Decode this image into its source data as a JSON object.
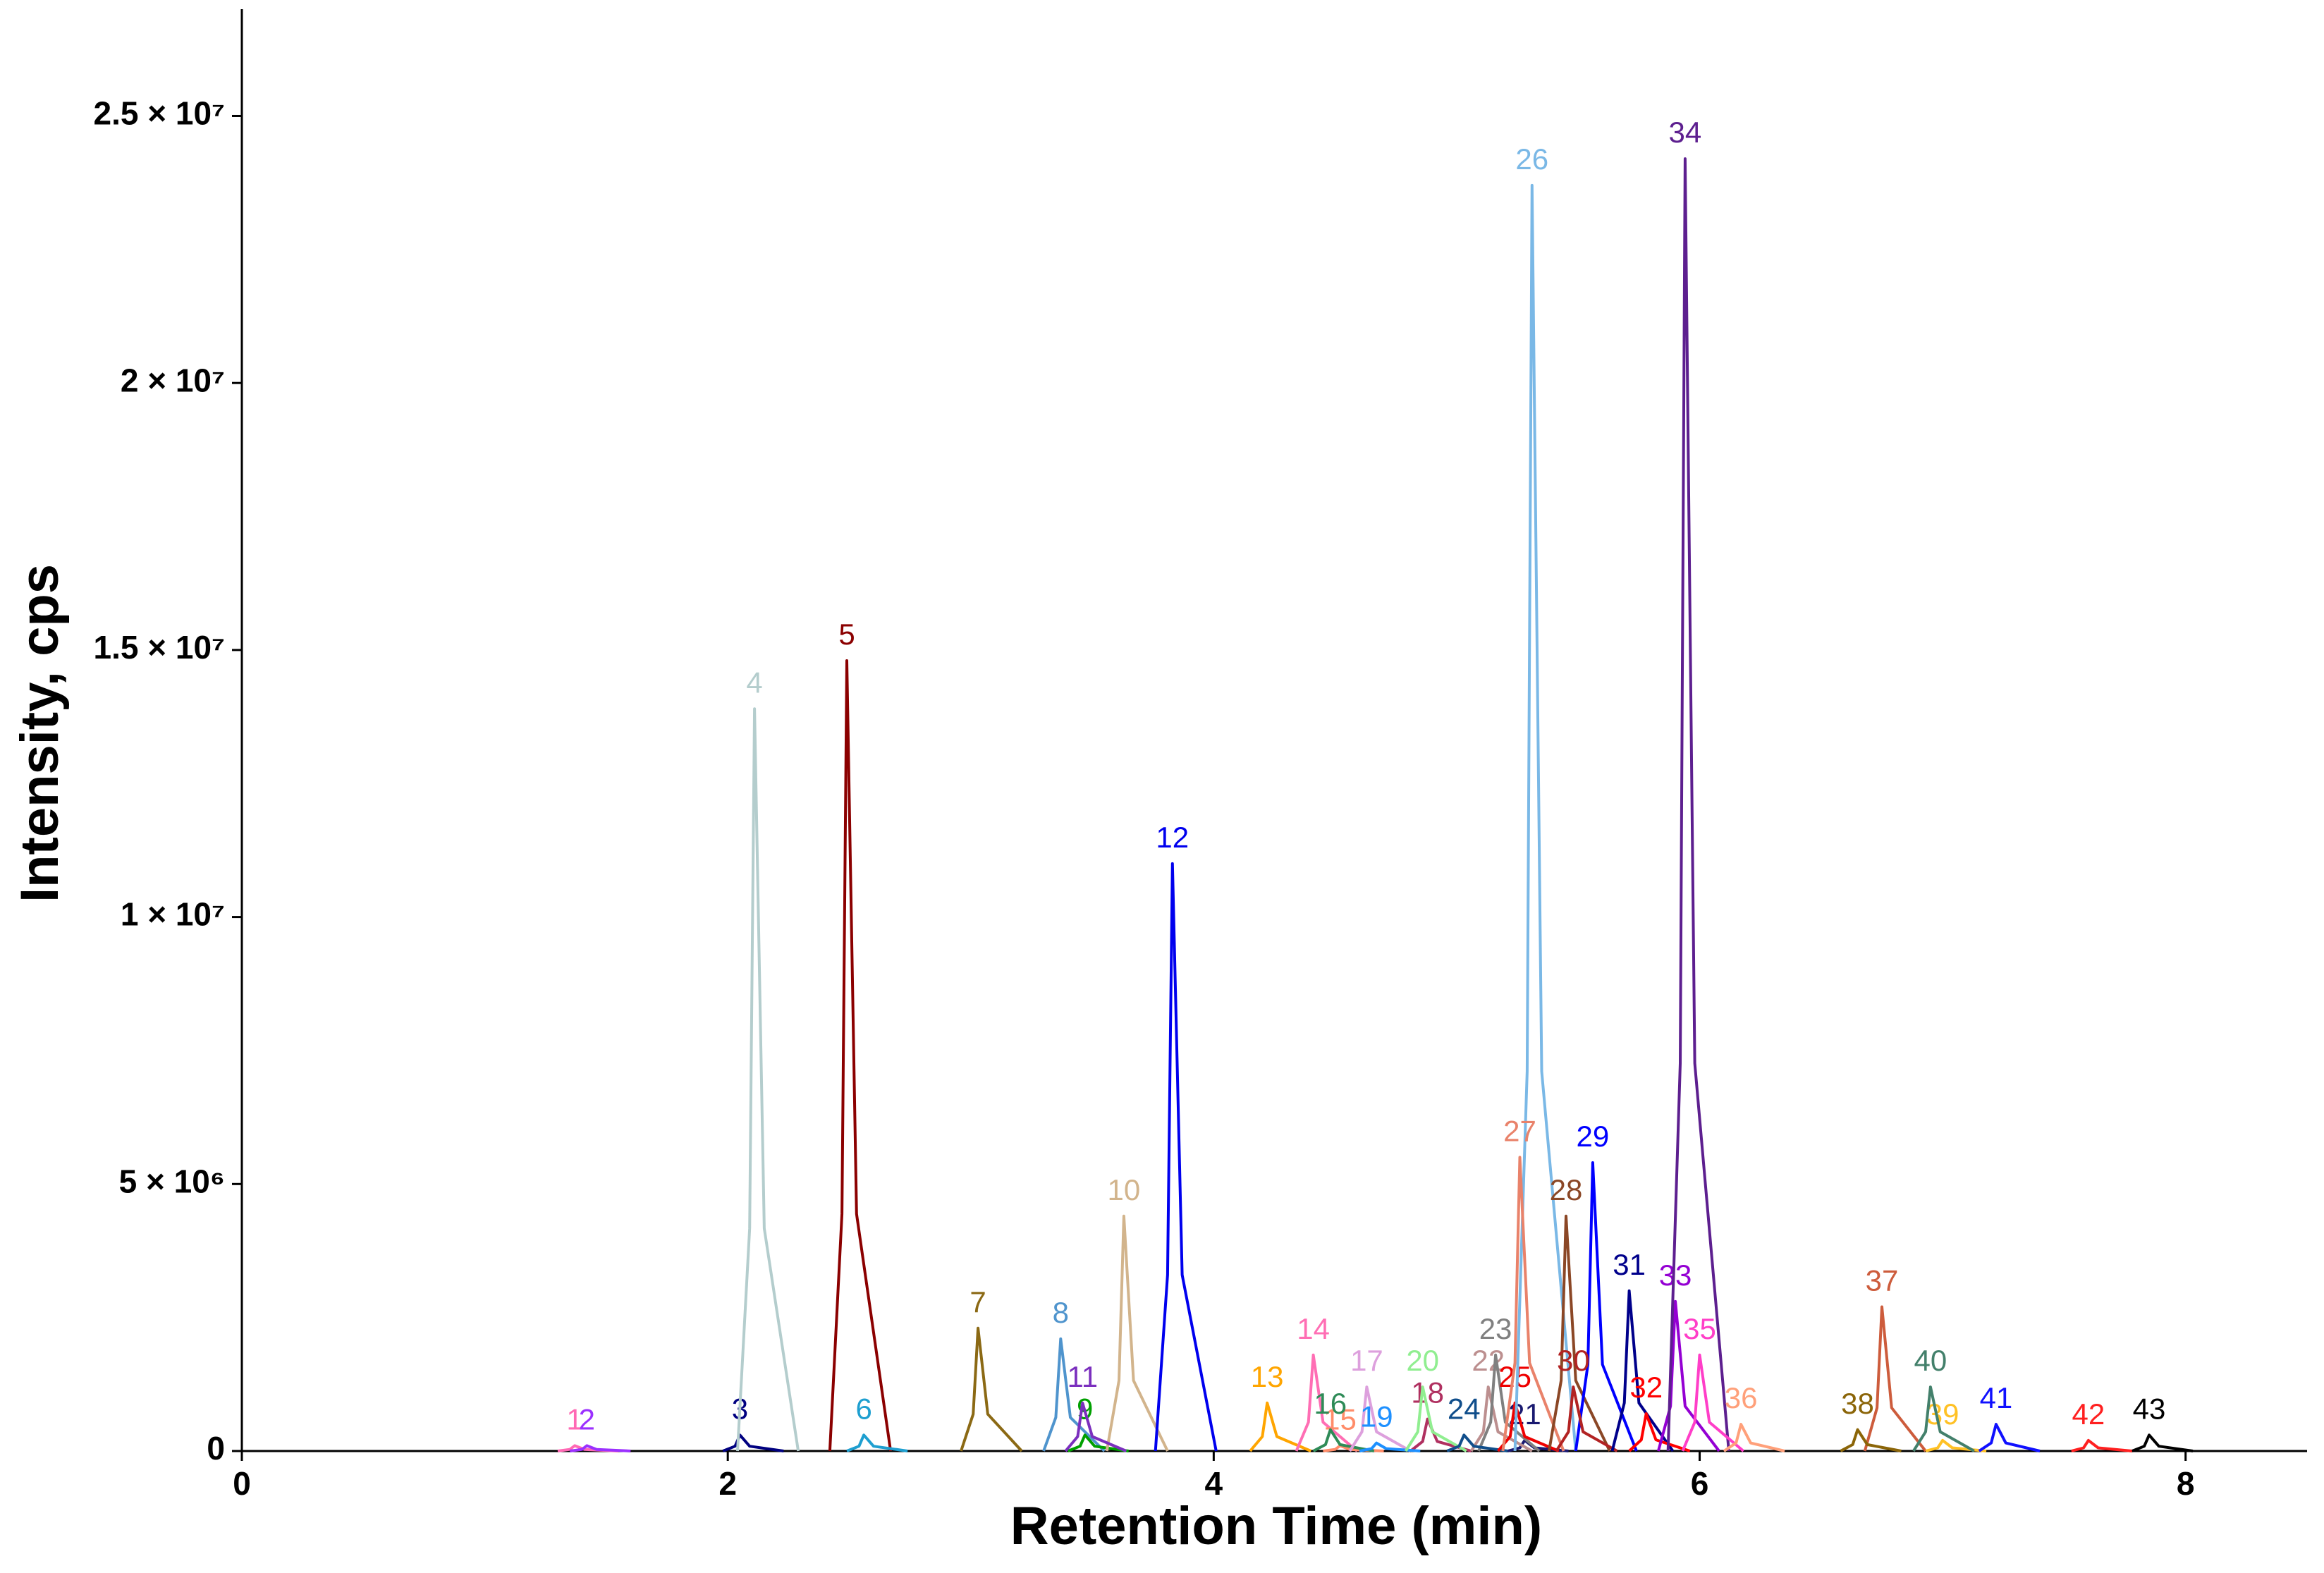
{
  "chart_data": {
    "type": "line",
    "x_label": "Retention Time (min)",
    "y_label": "Intensity, cps",
    "xlim": [
      0,
      8.5
    ],
    "ylim": [
      0,
      27000000
    ],
    "xticks": [
      0,
      2,
      4,
      6,
      8
    ],
    "yticks": [
      0,
      {
        "value": 5000000,
        "label": "5 × 10⁶"
      },
      {
        "value": 10000000,
        "label": "1 × 10⁷"
      },
      {
        "value": 15000000,
        "label": "1.5 × 10⁷"
      },
      {
        "value": 20000000,
        "label": "2 × 10⁷"
      },
      {
        "value": 25000000,
        "label": "2.5 × 10⁷"
      }
    ],
    "series": [
      {
        "name": "1",
        "color": "#ff69b4",
        "x": [
          1.3,
          1.35,
          1.37,
          1.41,
          1.55
        ],
        "values": [
          0,
          30000,
          100000,
          30000,
          0
        ]
      },
      {
        "name": "2",
        "color": "#9b30ff",
        "x": [
          1.35,
          1.4,
          1.42,
          1.46,
          1.6
        ],
        "values": [
          0,
          30000,
          100000,
          30000,
          0
        ]
      },
      {
        "name": "3",
        "color": "#000080",
        "x": [
          1.98,
          2.03,
          2.05,
          2.09,
          2.23
        ],
        "values": [
          0,
          90000,
          300000,
          90000,
          0
        ]
      },
      {
        "name": "4",
        "color": "#b4cdcd",
        "x": [
          2.04,
          2.09,
          2.11,
          2.15,
          2.29
        ],
        "values": [
          0,
          4170000,
          13900000,
          4170000,
          0
        ]
      },
      {
        "name": "5",
        "color": "#8b0000",
        "x": [
          2.42,
          2.47,
          2.49,
          2.53,
          2.67
        ],
        "values": [
          0,
          4440000,
          14800000,
          4440000,
          0
        ]
      },
      {
        "name": "6",
        "color": "#1e9fd0",
        "x": [
          2.49,
          2.54,
          2.56,
          2.6,
          2.74
        ],
        "values": [
          0,
          90000,
          300000,
          90000,
          0
        ]
      },
      {
        "name": "7",
        "color": "#8b6914",
        "x": [
          2.96,
          3.01,
          3.03,
          3.07,
          3.21
        ],
        "values": [
          0,
          690000,
          2300000,
          690000,
          0
        ]
      },
      {
        "name": "8",
        "color": "#4f94cd",
        "x": [
          3.3,
          3.35,
          3.37,
          3.41,
          3.55
        ],
        "values": [
          0,
          630000,
          2100000,
          630000,
          0
        ]
      },
      {
        "name": "9",
        "color": "#00a000",
        "x": [
          3.4,
          3.45,
          3.47,
          3.51,
          3.65
        ],
        "values": [
          0,
          90000,
          300000,
          90000,
          0
        ]
      },
      {
        "name": "10",
        "color": "#d2b48c",
        "x": [
          3.56,
          3.61,
          3.63,
          3.67,
          3.81
        ],
        "values": [
          0,
          1320000,
          4400000,
          1320000,
          0
        ]
      },
      {
        "name": "11",
        "color": "#7b2fbe",
        "x": [
          3.39,
          3.44,
          3.46,
          3.5,
          3.64
        ],
        "values": [
          0,
          270000,
          900000,
          270000,
          0
        ]
      },
      {
        "name": "12",
        "color": "#0000ee",
        "x": [
          3.76,
          3.81,
          3.83,
          3.87,
          4.01
        ],
        "values": [
          0,
          3300000,
          11000000,
          3300000,
          0
        ]
      },
      {
        "name": "13",
        "color": "#ffa500",
        "x": [
          4.15,
          4.2,
          4.22,
          4.26,
          4.4
        ],
        "values": [
          0,
          270000,
          900000,
          270000,
          0
        ]
      },
      {
        "name": "14",
        "color": "#ff6eb4",
        "x": [
          4.34,
          4.39,
          4.41,
          4.45,
          4.59
        ],
        "values": [
          0,
          540000,
          1800000,
          540000,
          0
        ]
      },
      {
        "name": "15",
        "color": "#ff8c69",
        "x": [
          4.45,
          4.5,
          4.52,
          4.56,
          4.7
        ],
        "values": [
          0,
          30000,
          100000,
          30000,
          0
        ]
      },
      {
        "name": "16",
        "color": "#2e8b57",
        "x": [
          4.41,
          4.46,
          4.48,
          4.52,
          4.66
        ],
        "values": [
          0,
          120000,
          400000,
          120000,
          0
        ]
      },
      {
        "name": "17",
        "color": "#dda0dd",
        "x": [
          4.56,
          4.61,
          4.63,
          4.67,
          4.81
        ],
        "values": [
          0,
          360000,
          1200000,
          360000,
          0
        ]
      },
      {
        "name": "18",
        "color": "#b03060",
        "x": [
          4.81,
          4.86,
          4.88,
          4.92,
          5.06
        ],
        "values": [
          0,
          180000,
          600000,
          180000,
          0
        ]
      },
      {
        "name": "19",
        "color": "#1e90ff",
        "x": [
          4.6,
          4.65,
          4.67,
          4.71,
          4.85
        ],
        "values": [
          0,
          45000,
          150000,
          45000,
          0
        ]
      },
      {
        "name": "20",
        "color": "#90ee90",
        "x": [
          4.79,
          4.84,
          4.86,
          4.9,
          5.04
        ],
        "values": [
          0,
          360000,
          1200000,
          360000,
          0
        ]
      },
      {
        "name": "21",
        "color": "#191970",
        "x": [
          5.21,
          5.26,
          5.28,
          5.32,
          5.46
        ],
        "values": [
          0,
          60000,
          200000,
          60000,
          0
        ]
      },
      {
        "name": "22",
        "color": "#bc8f8f",
        "x": [
          5.06,
          5.11,
          5.13,
          5.17,
          5.31
        ],
        "values": [
          0,
          360000,
          1200000,
          360000,
          0
        ]
      },
      {
        "name": "23",
        "color": "#808080",
        "x": [
          5.09,
          5.14,
          5.16,
          5.2,
          5.34
        ],
        "values": [
          0,
          540000,
          1800000,
          540000,
          0
        ]
      },
      {
        "name": "24",
        "color": "#104e8b",
        "x": [
          4.96,
          5.01,
          5.03,
          5.07,
          5.21
        ],
        "values": [
          0,
          90000,
          300000,
          90000,
          0
        ]
      },
      {
        "name": "25",
        "color": "#ee0000",
        "x": [
          5.17,
          5.22,
          5.24,
          5.28,
          5.42
        ],
        "values": [
          0,
          270000,
          900000,
          270000,
          0
        ]
      },
      {
        "name": "26",
        "color": "#7ab8e6",
        "x": [
          5.24,
          5.29,
          5.31,
          5.35,
          5.49
        ],
        "values": [
          0,
          7110000,
          23700000,
          7110000,
          0
        ]
      },
      {
        "name": "27",
        "color": "#e9826a",
        "x": [
          5.19,
          5.24,
          5.26,
          5.3,
          5.44
        ],
        "values": [
          0,
          1650000,
          5500000,
          1650000,
          0
        ]
      },
      {
        "name": "28",
        "color": "#8b4726",
        "x": [
          5.38,
          5.43,
          5.45,
          5.49,
          5.63
        ],
        "values": [
          0,
          1320000,
          4400000,
          1320000,
          0
        ]
      },
      {
        "name": "29",
        "color": "#0000ff",
        "x": [
          5.49,
          5.54,
          5.56,
          5.6,
          5.74
        ],
        "values": [
          0,
          1620000,
          5400000,
          1620000,
          0
        ]
      },
      {
        "name": "30",
        "color": "#b22222",
        "x": [
          5.41,
          5.46,
          5.48,
          5.52,
          5.66
        ],
        "values": [
          0,
          360000,
          1200000,
          360000,
          0
        ]
      },
      {
        "name": "31",
        "color": "#00008b",
        "x": [
          5.64,
          5.69,
          5.71,
          5.75,
          5.89
        ],
        "values": [
          0,
          900000,
          3000000,
          900000,
          0
        ]
      },
      {
        "name": "32",
        "color": "#ff0000",
        "x": [
          5.71,
          5.76,
          5.78,
          5.82,
          5.96
        ],
        "values": [
          0,
          210000,
          700000,
          210000,
          0
        ]
      },
      {
        "name": "33",
        "color": "#9400d3",
        "x": [
          5.83,
          5.88,
          5.9,
          5.94,
          6.08
        ],
        "values": [
          0,
          840000,
          2800000,
          840000,
          0
        ]
      },
      {
        "name": "34",
        "color": "#5d1f8f",
        "x": [
          5.87,
          5.92,
          5.94,
          5.98,
          6.12
        ],
        "values": [
          0,
          7260000,
          24200000,
          7260000,
          0
        ]
      },
      {
        "name": "35",
        "color": "#ff3ec8",
        "x": [
          5.93,
          5.98,
          6,
          6.04,
          6.18
        ],
        "values": [
          0,
          540000,
          1800000,
          540000,
          0
        ]
      },
      {
        "name": "36",
        "color": "#ffa07a",
        "x": [
          6.1,
          6.15,
          6.17,
          6.21,
          6.35
        ],
        "values": [
          0,
          150000,
          500000,
          150000,
          0
        ]
      },
      {
        "name": "37",
        "color": "#cd5c3c",
        "x": [
          6.68,
          6.73,
          6.75,
          6.79,
          6.93
        ],
        "values": [
          0,
          810000,
          2700000,
          810000,
          0
        ]
      },
      {
        "name": "38",
        "color": "#8b6508",
        "x": [
          6.58,
          6.63,
          6.65,
          6.69,
          6.83
        ],
        "values": [
          0,
          120000,
          400000,
          120000,
          0
        ]
      },
      {
        "name": "39",
        "color": "#ffc125",
        "x": [
          6.93,
          6.98,
          7,
          7.04,
          7.18
        ],
        "values": [
          0,
          60000,
          200000,
          60000,
          0
        ]
      },
      {
        "name": "40",
        "color": "#43806b",
        "x": [
          6.88,
          6.93,
          6.95,
          6.99,
          7.13
        ],
        "values": [
          0,
          360000,
          1200000,
          360000,
          0
        ]
      },
      {
        "name": "41",
        "color": "#1010ff",
        "x": [
          7.15,
          7.2,
          7.22,
          7.26,
          7.4
        ],
        "values": [
          0,
          150000,
          500000,
          150000,
          0
        ]
      },
      {
        "name": "42",
        "color": "#ff2020",
        "x": [
          7.53,
          7.58,
          7.6,
          7.64,
          7.78
        ],
        "values": [
          0,
          60000,
          200000,
          60000,
          0
        ]
      },
      {
        "name": "43",
        "color": "#000000",
        "x": [
          7.78,
          7.83,
          7.85,
          7.89,
          8.03
        ],
        "values": [
          0,
          90000,
          300000,
          90000,
          0
        ]
      }
    ]
  }
}
